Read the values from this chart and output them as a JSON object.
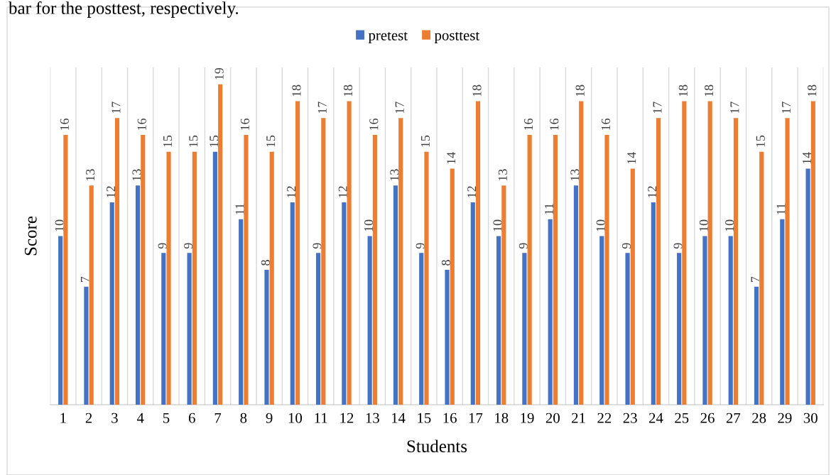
{
  "chart_data": {
    "type": "bar",
    "xlabel": "Students",
    "ylabel": "Score",
    "categories": [
      "1",
      "2",
      "3",
      "4",
      "5",
      "6",
      "7",
      "8",
      "9",
      "10",
      "11",
      "12",
      "13",
      "14",
      "15",
      "16",
      "17",
      "18",
      "19",
      "20",
      "21",
      "22",
      "23",
      "24",
      "25",
      "26",
      "27",
      "28",
      "29",
      "30"
    ],
    "series": [
      {
        "name": "pretest",
        "color": "#4472c4",
        "values": [
          10,
          7,
          12,
          13,
          9,
          9,
          15,
          11,
          8,
          12,
          9,
          12,
          10,
          13,
          9,
          8,
          12,
          10,
          9,
          11,
          13,
          10,
          9,
          12,
          9,
          10,
          10,
          7,
          11,
          14
        ]
      },
      {
        "name": "posttest",
        "color": "#ed7d31",
        "values": [
          16,
          13,
          17,
          16,
          15,
          15,
          19,
          16,
          15,
          18,
          17,
          18,
          16,
          17,
          15,
          14,
          18,
          13,
          16,
          16,
          18,
          16,
          14,
          17,
          18,
          18,
          17,
          15,
          17,
          18
        ]
      }
    ],
    "ylim": [
      0,
      20
    ],
    "tick_labels": "x",
    "data_labels": true,
    "grid": "x",
    "legend": "top",
    "annotations": [
      "bar for the posttest, respectively."
    ]
  }
}
